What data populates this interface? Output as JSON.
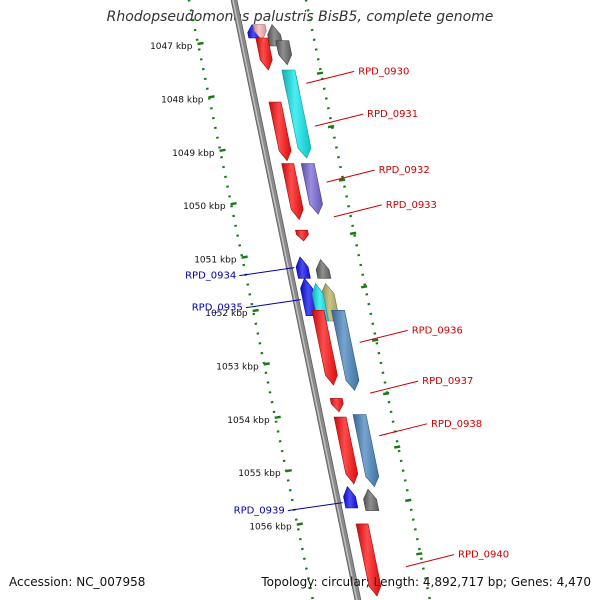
{
  "title": "Rhodopseudomonas palustris BisB5, complete genome",
  "footer": {
    "accession": "Accession: NC_007958",
    "summary": "Topology: circular; Length: 4,892,717 bp; Genes: 4,470"
  },
  "colors": {
    "backbone": "#8a8a8a",
    "tick": "#1a7a1a",
    "red": "#ff1010",
    "cyan": "#12e8ee",
    "purple": "#7a66d6",
    "blue": "#1010f0",
    "steel": "#4a86bf",
    "gray": "#6a6a6a",
    "olive": "#b8b064",
    "pink": "#f7b3b3",
    "label_forward": "#cc0000",
    "label_reverse": "#0000aa"
  },
  "scale": {
    "ticks": [
      "1047 kbp",
      "1048 kbp",
      "1049 kbp",
      "1050 kbp",
      "1051 kbp",
      "1052 kbp",
      "1053 kbp",
      "1054 kbp",
      "1055 kbp",
      "1056 kbp"
    ]
  },
  "genes": [
    {
      "name": "RPD_0930",
      "strand": "+",
      "lane": "outer",
      "color": "red",
      "start": 1047.55,
      "end": 1048.05
    },
    {
      "name": "RPD_0931",
      "strand": "+",
      "lane": "outer",
      "color": "cyan",
      "start": 1047.45,
      "end": 1049.1
    },
    {
      "name": "RPD_0931",
      "strand": "+",
      "lane": "inner",
      "color": "red",
      "start": 1048.05,
      "end": 1049.15
    },
    {
      "name": "RPD_0932",
      "strand": "+",
      "lane": "outer",
      "color": "purple",
      "start": 1049.2,
      "end": 1050.15
    },
    {
      "name": "RPD_0932",
      "strand": "+",
      "lane": "inner",
      "color": "red",
      "start": 1049.2,
      "end": 1050.25
    },
    {
      "name": "RPD_0933",
      "strand": "+",
      "lane": "inner",
      "color": "red",
      "start": 1050.45,
      "end": 1050.65
    },
    {
      "name": "RPD_0934",
      "strand": "-",
      "lane": "inner",
      "color": "blue",
      "start": 1050.95,
      "end": 1051.35
    },
    {
      "name": "RPD_0934",
      "strand": "-",
      "lane": "outer",
      "color": "gray",
      "start": 1051.0,
      "end": 1051.35
    },
    {
      "name": "RPD_0935",
      "strand": "-",
      "lane": "inner",
      "color": "blue",
      "start": 1051.35,
      "end": 1052.05
    },
    {
      "name": "RPD_0935",
      "strand": "-",
      "lane": "outer",
      "color": "olive",
      "start": 1051.45,
      "end": 1052.15
    },
    {
      "name": "RPD_0935",
      "strand": "-",
      "lane": "mid",
      "color": "cyan",
      "start": 1051.45,
      "end": 1052.15
    },
    {
      "name": "RPD_0936",
      "strand": "+",
      "lane": "outer",
      "color": "steel",
      "start": 1051.95,
      "end": 1053.45
    },
    {
      "name": "RPD_0936",
      "strand": "+",
      "lane": "inner",
      "color": "red",
      "start": 1051.95,
      "end": 1053.35
    },
    {
      "name": "RPD_0937",
      "strand": "+",
      "lane": "inner",
      "color": "red",
      "start": 1053.6,
      "end": 1053.85
    },
    {
      "name": "RPD_0938",
      "strand": "+",
      "lane": "outer",
      "color": "steel",
      "start": 1053.9,
      "end": 1055.25
    },
    {
      "name": "RPD_0938",
      "strand": "+",
      "lane": "inner",
      "color": "red",
      "start": 1053.95,
      "end": 1055.2
    },
    {
      "name": "RPD_0939",
      "strand": "-",
      "lane": "inner",
      "color": "blue",
      "start": 1055.25,
      "end": 1055.65
    },
    {
      "name": "RPD_0939",
      "strand": "-",
      "lane": "outer",
      "color": "gray",
      "start": 1055.3,
      "end": 1055.7
    },
    {
      "name": "RPD_0940",
      "strand": "+",
      "lane": "inner",
      "color": "red",
      "start": 1055.95,
      "end": 1057.3
    },
    {
      "name": "top-gray",
      "strand": "-",
      "lane": "outer",
      "color": "gray",
      "start": 1046.6,
      "end": 1047.0
    },
    {
      "name": "top-blue",
      "strand": "-",
      "lane": "inner",
      "color": "blue",
      "start": 1046.6,
      "end": 1046.85
    },
    {
      "name": "top-pink",
      "strand": "+",
      "lane": "inner",
      "color": "pink",
      "start": 1046.6,
      "end": 1046.9
    },
    {
      "name": "top-red",
      "strand": "+",
      "lane": "inner",
      "color": "red",
      "start": 1046.85,
      "end": 1047.45
    },
    {
      "name": "top-gray2",
      "strand": "+",
      "lane": "outer",
      "color": "gray",
      "start": 1046.9,
      "end": 1047.35
    }
  ],
  "labels": [
    {
      "text": "RPD_0930",
      "strand": "+",
      "pos": 1047.7
    },
    {
      "text": "RPD_0931",
      "strand": "+",
      "pos": 1048.5
    },
    {
      "text": "RPD_0932",
      "strand": "+",
      "pos": 1049.55
    },
    {
      "text": "RPD_0933",
      "strand": "+",
      "pos": 1050.2
    },
    {
      "text": "RPD_0934",
      "strand": "-",
      "pos": 1051.15
    },
    {
      "text": "RPD_0935",
      "strand": "-",
      "pos": 1051.75
    },
    {
      "text": "RPD_0936",
      "strand": "+",
      "pos": 1052.55
    },
    {
      "text": "RPD_0937",
      "strand": "+",
      "pos": 1053.5
    },
    {
      "text": "RPD_0938",
      "strand": "+",
      "pos": 1054.3
    },
    {
      "text": "RPD_0939",
      "strand": "-",
      "pos": 1055.55
    },
    {
      "text": "RPD_0940",
      "strand": "+",
      "pos": 1056.75
    }
  ]
}
